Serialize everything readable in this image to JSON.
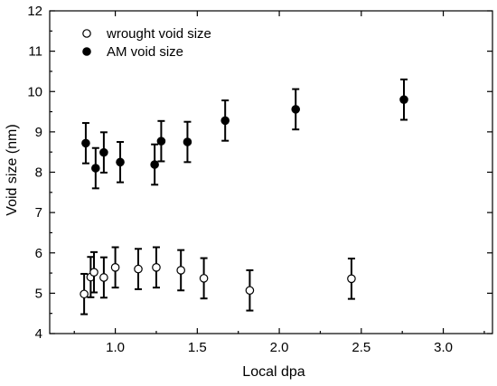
{
  "chart_data": {
    "type": "scatter",
    "title": "",
    "xlabel": "Local dpa",
    "ylabel": "Void size (nm)",
    "xlim": [
      0.6,
      3.3
    ],
    "ylim": [
      4,
      12
    ],
    "xticks": [
      1.0,
      1.5,
      2.0,
      2.5,
      3.0
    ],
    "xtick_labels": [
      "1.0",
      "1.5",
      "2.0",
      "2.5",
      "3.0"
    ],
    "yticks": [
      4,
      5,
      6,
      7,
      8,
      9,
      10,
      11,
      12
    ],
    "ytick_labels": [
      "4",
      "5",
      "6",
      "7",
      "8",
      "9",
      "10",
      "11",
      "12"
    ],
    "grid": false,
    "legend_position": "top-left",
    "series": [
      {
        "name": "wrought void size",
        "marker": "open-circle",
        "color": "#000000",
        "x": [
          0.81,
          0.85,
          0.87,
          0.93,
          1.0,
          1.14,
          1.25,
          1.4,
          1.54,
          1.82,
          2.44
        ],
        "y": [
          4.98,
          5.4,
          5.52,
          5.39,
          5.64,
          5.6,
          5.64,
          5.57,
          5.37,
          5.07,
          5.36
        ],
        "err": [
          0.5,
          0.5,
          0.5,
          0.5,
          0.5,
          0.5,
          0.5,
          0.5,
          0.5,
          0.5,
          0.5
        ]
      },
      {
        "name": "AM void size",
        "marker": "filled-circle",
        "color": "#000000",
        "x": [
          0.82,
          0.88,
          0.93,
          1.03,
          1.24,
          1.28,
          1.44,
          1.67,
          2.1,
          2.76
        ],
        "y": [
          8.72,
          8.1,
          8.49,
          8.25,
          8.19,
          8.77,
          8.75,
          9.28,
          9.56,
          9.8
        ],
        "err": [
          0.5,
          0.5,
          0.5,
          0.5,
          0.5,
          0.5,
          0.5,
          0.5,
          0.5,
          0.5
        ]
      }
    ]
  }
}
